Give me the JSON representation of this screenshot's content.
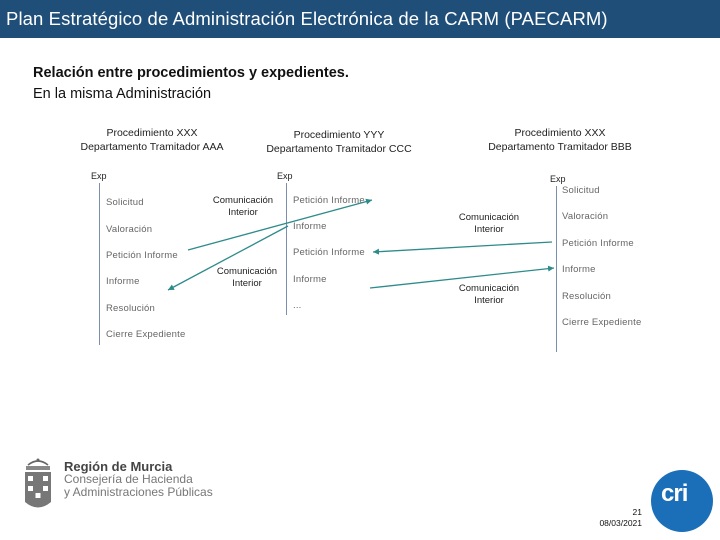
{
  "header": {
    "title": "Plan Estratégico de Administración Electrónica de la CARM (PAECARM)"
  },
  "subtitle": {
    "line1": "Relación entre procedimientos y expedientes.",
    "line2": "En la misma Administración"
  },
  "procedures": [
    {
      "procedure": "Procedimiento XXX",
      "department": "Departamento Tramitador AAA",
      "exp_label": "Exp"
    },
    {
      "procedure": "Procedimiento YYY",
      "department": "Departamento Tramitador CCC",
      "exp_label": "Exp"
    },
    {
      "procedure": "Procedimiento XXX",
      "department": "Departamento Tramitador BBB",
      "exp_label": "Exp"
    }
  ],
  "left_steps": [
    "Solicitud",
    "Valoración",
    "Petición Informe",
    "Informe",
    "Resolución",
    "Cierre Expediente"
  ],
  "middle_steps": [
    "Petición Informe",
    "Informe",
    "Petición Informe",
    "Informe",
    "..."
  ],
  "right_steps": [
    "Solicitud",
    "Valoración",
    "Petición Informe",
    "Informe",
    "Resolución",
    "Cierre Expediente"
  ],
  "communications": [
    {
      "line1": "Comunicación",
      "line2": "Interior"
    },
    {
      "line1": "Comunicación",
      "line2": "Interior"
    },
    {
      "line1": "Comunicación",
      "line2": "Interior"
    },
    {
      "line1": "Comunicación",
      "line2": "Interior"
    }
  ],
  "footer": {
    "region_name": "Región de Murcia",
    "department_line1": "Consejería de Hacienda",
    "department_line2": "y Administraciones Públicas",
    "page_number": "21",
    "date": "08/03/2021",
    "logo_text": "cri"
  },
  "colors": {
    "header_bg": "#1f4e79",
    "arrow": "#2e8b8b",
    "logo_blue": "#1b6fb8"
  }
}
